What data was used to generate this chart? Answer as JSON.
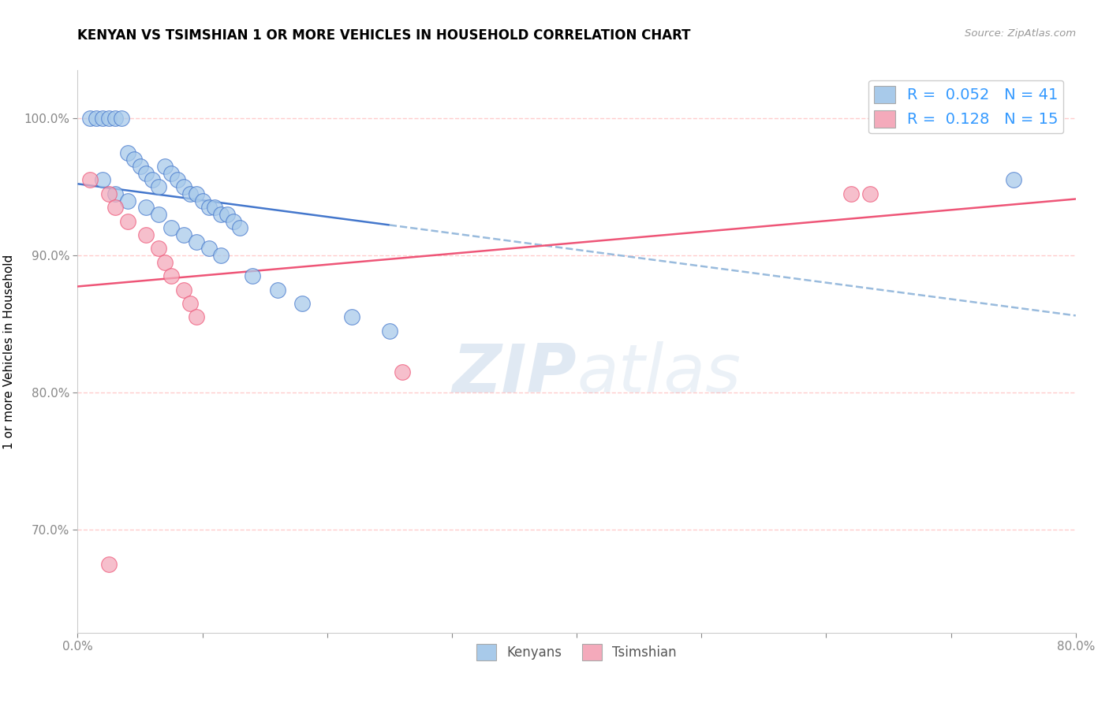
{
  "title": "KENYAN VS TSIMSHIAN 1 OR MORE VEHICLES IN HOUSEHOLD CORRELATION CHART",
  "source_text": "Source: ZipAtlas.com",
  "ylabel": "1 or more Vehicles in Household",
  "xlim": [
    0.0,
    0.8
  ],
  "ylim": [
    0.625,
    1.035
  ],
  "x_ticks": [
    0.0,
    0.1,
    0.2,
    0.3,
    0.4,
    0.5,
    0.6,
    0.7,
    0.8
  ],
  "x_tick_labels": [
    "0.0%",
    "",
    "",
    "",
    "",
    "",
    "",
    "",
    "80.0%"
  ],
  "y_ticks": [
    0.7,
    0.8,
    0.9,
    1.0
  ],
  "y_tick_labels": [
    "70.0%",
    "80.0%",
    "90.0%",
    "100.0%"
  ],
  "blue_R": 0.052,
  "blue_N": 41,
  "pink_R": 0.128,
  "pink_N": 15,
  "blue_color": "#A8CAEA",
  "pink_color": "#F4AABB",
  "blue_line_color": "#4477CC",
  "pink_line_color": "#EE5577",
  "dashed_line_color": "#99BBDD",
  "grid_color": "#FFAAAA",
  "watermark_color": "#C8D8EA",
  "blue_x": [
    0.01,
    0.015,
    0.02,
    0.025,
    0.03,
    0.035,
    0.04,
    0.045,
    0.05,
    0.055,
    0.06,
    0.065,
    0.07,
    0.075,
    0.08,
    0.085,
    0.09,
    0.095,
    0.1,
    0.105,
    0.11,
    0.115,
    0.12,
    0.125,
    0.13,
    0.02,
    0.03,
    0.04,
    0.055,
    0.065,
    0.075,
    0.085,
    0.095,
    0.105,
    0.115,
    0.14,
    0.16,
    0.18,
    0.22,
    0.25,
    0.75
  ],
  "blue_y": [
    1.0,
    1.0,
    1.0,
    1.0,
    1.0,
    1.0,
    0.975,
    0.97,
    0.965,
    0.96,
    0.955,
    0.95,
    0.965,
    0.96,
    0.955,
    0.95,
    0.945,
    0.945,
    0.94,
    0.935,
    0.935,
    0.93,
    0.93,
    0.925,
    0.92,
    0.955,
    0.945,
    0.94,
    0.935,
    0.93,
    0.92,
    0.915,
    0.91,
    0.905,
    0.9,
    0.885,
    0.875,
    0.865,
    0.855,
    0.845,
    0.955
  ],
  "pink_x": [
    0.01,
    0.025,
    0.03,
    0.04,
    0.055,
    0.065,
    0.07,
    0.075,
    0.085,
    0.09,
    0.095,
    0.62,
    0.635,
    0.26,
    0.025
  ],
  "pink_y": [
    0.955,
    0.945,
    0.935,
    0.925,
    0.915,
    0.905,
    0.895,
    0.885,
    0.875,
    0.865,
    0.855,
    0.945,
    0.945,
    0.815,
    0.675
  ]
}
